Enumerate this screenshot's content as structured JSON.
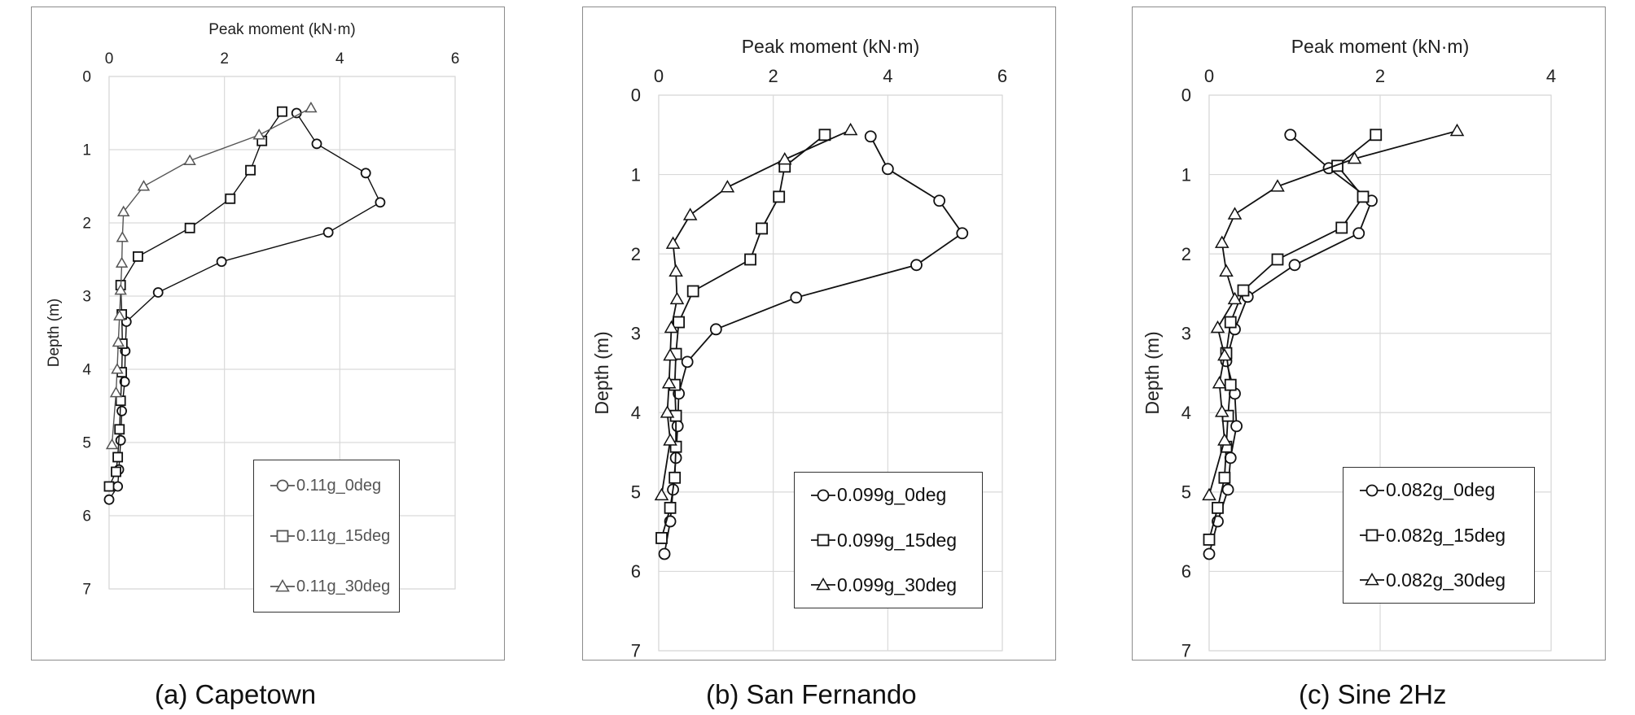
{
  "colors": {
    "frame": "#8c8c8c",
    "grid": "#d9d9d9",
    "axis_text": "#222222"
  },
  "chart_data": [
    {
      "type": "line",
      "title": "",
      "xlabel": "Peak moment (kN·m)",
      "ylabel": "Depth (m)",
      "xlim": [
        0,
        6
      ],
      "ylim": [
        0,
        7
      ],
      "y_inverted": true,
      "x_axis_position": "top",
      "x_ticks": [
        "0",
        "2",
        "4",
        "6"
      ],
      "y_ticks": [
        "0",
        "1",
        "2",
        "3",
        "4",
        "5",
        "6",
        "7"
      ],
      "grid": true,
      "legend": "bottom-right",
      "caption": "(a) Capetown",
      "series": [
        {
          "name": "0.11g_0deg",
          "marker": "circle",
          "x": [
            3.25,
            3.6,
            4.45,
            4.7,
            3.8,
            1.95,
            0.85,
            0.3,
            0.28,
            0.27,
            0.22,
            0.2,
            0.17,
            0.15,
            0.0
          ],
          "y": [
            0.5,
            0.92,
            1.32,
            1.72,
            2.13,
            2.53,
            2.95,
            3.35,
            3.75,
            4.17,
            4.57,
            4.97,
            5.37,
            5.6,
            5.78
          ]
        },
        {
          "name": "0.11g_15deg",
          "marker": "square",
          "x": [
            3.0,
            2.65,
            2.45,
            2.1,
            1.4,
            0.5,
            0.2,
            0.22,
            0.23,
            0.22,
            0.2,
            0.18,
            0.15,
            0.12,
            0.0
          ],
          "y": [
            0.48,
            0.88,
            1.28,
            1.67,
            2.07,
            2.46,
            2.85,
            3.25,
            3.65,
            4.04,
            4.43,
            4.82,
            5.2,
            5.4,
            5.6
          ]
        },
        {
          "name": "0.11g_30deg",
          "marker": "triangle",
          "x": [
            3.5,
            2.6,
            1.4,
            0.6,
            0.25,
            0.23,
            0.22,
            0.2,
            0.18,
            0.16,
            0.14,
            0.12,
            0.05
          ],
          "y": [
            0.43,
            0.8,
            1.15,
            1.5,
            1.85,
            2.2,
            2.55,
            2.92,
            3.27,
            3.63,
            4.0,
            4.32,
            5.03
          ]
        }
      ]
    },
    {
      "type": "line",
      "title": "",
      "xlabel": "Peak moment (kN·m)",
      "ylabel": "Depth (m)",
      "xlim": [
        0,
        6
      ],
      "ylim": [
        0,
        7
      ],
      "y_inverted": true,
      "x_axis_position": "top",
      "x_ticks": [
        "0",
        "2",
        "4",
        "6"
      ],
      "y_ticks": [
        "0",
        "1",
        "2",
        "3",
        "4",
        "5",
        "6",
        "7"
      ],
      "grid": true,
      "legend": "bottom-right",
      "caption": "(b) San Fernando",
      "series": [
        {
          "name": "0.099g_0deg",
          "marker": "circle",
          "x": [
            3.7,
            4.0,
            4.9,
            5.3,
            4.5,
            2.4,
            1.0,
            0.5,
            0.35,
            0.33,
            0.3,
            0.25,
            0.2,
            0.1
          ],
          "y": [
            0.52,
            0.93,
            1.33,
            1.74,
            2.14,
            2.55,
            2.95,
            3.36,
            3.76,
            4.17,
            4.57,
            4.97,
            5.37,
            5.78
          ]
        },
        {
          "name": "0.099g_15deg",
          "marker": "square",
          "x": [
            2.9,
            2.2,
            2.1,
            1.8,
            1.6,
            0.6,
            0.35,
            0.3,
            0.28,
            0.3,
            0.3,
            0.28,
            0.2,
            0.05
          ],
          "y": [
            0.5,
            0.9,
            1.28,
            1.68,
            2.07,
            2.47,
            2.86,
            3.26,
            3.65,
            4.04,
            4.43,
            4.82,
            5.2,
            5.58
          ]
        },
        {
          "name": "0.099g_30deg",
          "marker": "triangle",
          "x": [
            3.35,
            2.2,
            1.2,
            0.55,
            0.25,
            0.3,
            0.32,
            0.22,
            0.2,
            0.18,
            0.15,
            0.2,
            0.05
          ],
          "y": [
            0.44,
            0.81,
            1.16,
            1.51,
            1.87,
            2.22,
            2.57,
            2.93,
            3.28,
            3.63,
            4.0,
            4.35,
            5.04
          ]
        }
      ]
    },
    {
      "type": "line",
      "title": "",
      "xlabel": "Peak moment (kN·m)",
      "ylabel": "Depth (m)",
      "xlim": [
        0,
        4
      ],
      "ylim": [
        0,
        7
      ],
      "y_inverted": true,
      "x_axis_position": "top",
      "x_ticks": [
        "0",
        "2",
        "4"
      ],
      "y_ticks": [
        "0",
        "1",
        "2",
        "3",
        "4",
        "5",
        "6",
        "7"
      ],
      "grid": true,
      "legend": "bottom-right",
      "caption": "(c) Sine 2Hz",
      "series": [
        {
          "name": "0.082g_0deg",
          "marker": "circle",
          "x": [
            0.95,
            1.4,
            1.9,
            1.75,
            1.0,
            0.45,
            0.3,
            0.2,
            0.3,
            0.32,
            0.25,
            0.22,
            0.1,
            0.0
          ],
          "y": [
            0.5,
            0.92,
            1.33,
            1.74,
            2.14,
            2.54,
            2.95,
            3.35,
            3.76,
            4.17,
            4.57,
            4.97,
            5.37,
            5.78
          ]
        },
        {
          "name": "0.082g_15deg",
          "marker": "square",
          "x": [
            1.95,
            1.5,
            1.8,
            1.55,
            0.8,
            0.4,
            0.25,
            0.2,
            0.25,
            0.22,
            0.2,
            0.18,
            0.1,
            0.0
          ],
          "y": [
            0.5,
            0.89,
            1.28,
            1.67,
            2.07,
            2.46,
            2.86,
            3.25,
            3.65,
            4.04,
            4.43,
            4.82,
            5.2,
            5.6
          ]
        },
        {
          "name": "0.082g_30deg",
          "marker": "triangle",
          "x": [
            2.9,
            1.7,
            0.8,
            0.3,
            0.15,
            0.2,
            0.3,
            0.1,
            0.18,
            0.12,
            0.15,
            0.18,
            0.0
          ],
          "y": [
            0.45,
            0.8,
            1.15,
            1.5,
            1.86,
            2.22,
            2.57,
            2.93,
            3.28,
            3.63,
            3.99,
            4.35,
            5.04
          ]
        }
      ]
    }
  ]
}
